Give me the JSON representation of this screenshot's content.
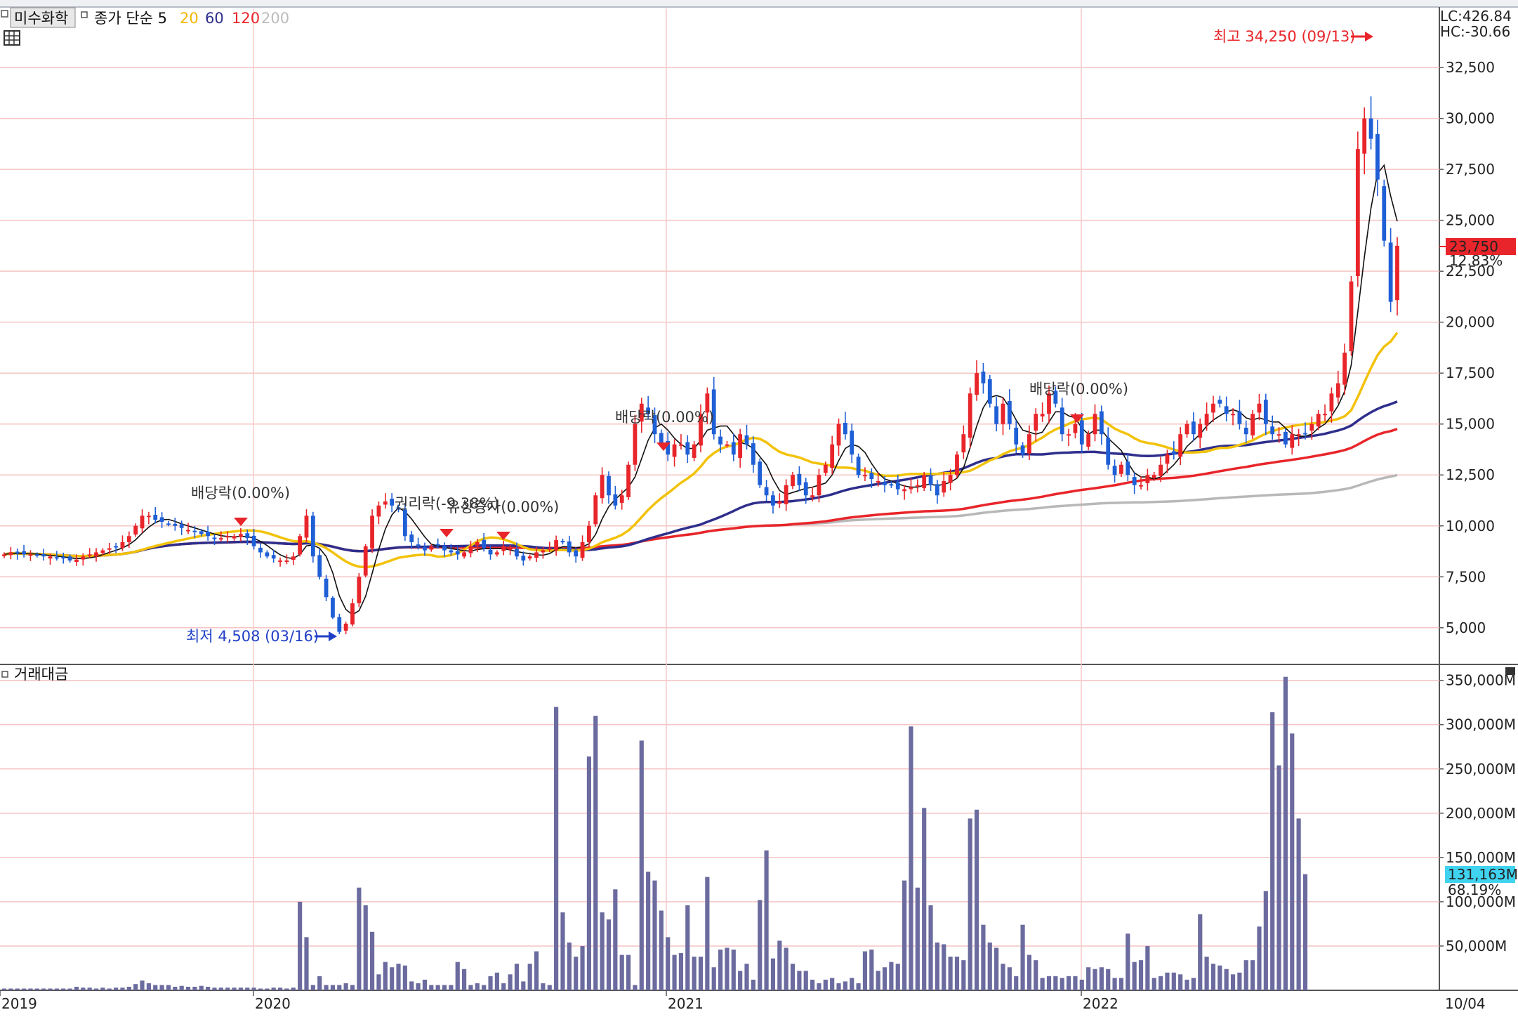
{
  "header": {
    "stock_name": "미수화학",
    "indicator_label": "종가 단순 5",
    "ma_periods": [
      "20",
      "60",
      "120",
      "200"
    ],
    "lc_label": "LC:426.84",
    "hc_label": "HC:-30.66"
  },
  "volume_panel": {
    "title": "거래대금"
  },
  "annotations": {
    "high": "최고 34,250 (09/13)",
    "low": "최저 4,508 (03/16)",
    "events": [
      "배당락(0.00%)",
      "권리락(-9.38%)",
      "유상증자(0.00%)",
      "배당락(0.00%)",
      "배당락(0.00%)"
    ]
  },
  "price_badge": {
    "price": "23,750",
    "change": "12.83%"
  },
  "volume_badge": {
    "value": "131,163M",
    "change": "68.19%"
  },
  "colors": {
    "up": "#e8252a",
    "down": "#1f5fd6",
    "ma5": "#111111",
    "ma20": "#f2c20a",
    "ma60": "#2e2e8c",
    "ma120": "#e8252a",
    "ma200": "#b8b8b8",
    "volume": "#6b6b9f",
    "grid": "#f6c4c4",
    "vgrid": "#f7c9c9"
  },
  "chart_data": [
    {
      "type": "candlestick",
      "title": "미수화학",
      "price_axis": {
        "ticks": [
          5000,
          7500,
          10000,
          12500,
          15000,
          17500,
          20000,
          22500,
          25000,
          27500,
          30000,
          32500
        ],
        "labels": [
          "5,000",
          "7,500",
          "10,000",
          "12,500",
          "15,000",
          "17,500",
          "20,000",
          "22,500",
          "25,000",
          "27,500",
          "30,000",
          "32,500"
        ],
        "ylim": [
          3200,
          35400
        ]
      },
      "time_axis": {
        "labels": [
          "2019",
          "2020",
          "2021",
          "2022",
          "10/04"
        ]
      },
      "grid": true,
      "high_point": {
        "value": 34250,
        "date": "09/13"
      },
      "low_point": {
        "value": 4508,
        "date": "03/16"
      },
      "last_close": 23750,
      "moving_averages": [
        {
          "name": "20",
          "period": 20
        },
        {
          "name": "60",
          "period": 60
        },
        {
          "name": "120",
          "period": 120
        },
        {
          "name": "200",
          "period": 200
        }
      ],
      "closes": [
        8600,
        8700,
        8650,
        8600,
        8600,
        8550,
        8500,
        8500,
        8450,
        8400,
        8300,
        8350,
        8500,
        8600,
        8700,
        8800,
        8900,
        9000,
        9200,
        9500,
        10000,
        10500,
        10500,
        10300,
        10200,
        10100,
        10000,
        9900,
        9800,
        9700,
        9600,
        9500,
        9400,
        9400,
        9500,
        9500,
        9600,
        9400,
        9000,
        8700,
        8500,
        8400,
        8300,
        8300,
        8500,
        9500,
        10500,
        8500,
        7500,
        6500,
        5500,
        4800,
        5200,
        6200,
        7500,
        9000,
        10500,
        11000,
        11200,
        11000,
        10800,
        9500,
        9200,
        9000,
        8800,
        9000,
        9100,
        8800,
        8700,
        8600,
        8700,
        9000,
        9200,
        8900,
        8600,
        8700,
        9000,
        8900,
        8500,
        8300,
        8500,
        8700,
        8800,
        8900,
        9300,
        9200,
        8700,
        8500,
        9200,
        10000,
        11500,
        12500,
        11500,
        11000,
        11500,
        13000,
        15000,
        16000,
        15500,
        14500,
        14000,
        13500,
        14000,
        14000,
        13500,
        14000,
        15500,
        16500,
        14500,
        14000,
        14000,
        13500,
        14500,
        14000,
        13000,
        12000,
        11500,
        11000,
        11200,
        12000,
        12500,
        12000,
        11500,
        11500,
        12500,
        13000,
        14000,
        15000,
        14500,
        13500,
        12500,
        12500,
        12300,
        12200,
        12000,
        12000,
        11800,
        11800,
        11900,
        12000,
        12500,
        12000,
        11500,
        12200,
        12500,
        13500,
        14500,
        16500,
        17500,
        17000,
        16000,
        15000,
        16000,
        15000,
        14000,
        13500,
        14500,
        15500,
        15500,
        16500,
        16000,
        14500,
        14500,
        15000,
        14000,
        14500,
        15500,
        14500,
        13000,
        12500,
        13000,
        12500,
        12000,
        12000,
        12500,
        12500,
        13000,
        13500,
        13500,
        14500,
        15000,
        14500,
        15000,
        15500,
        16000,
        16000,
        15500,
        15500,
        15000,
        14500,
        15500,
        16000,
        15000,
        14500,
        14500,
        14000,
        14500,
        14500,
        14500,
        15000,
        15500,
        15500,
        16500,
        17000,
        18500,
        22000,
        28500,
        30000,
        29000,
        27000,
        24000,
        21000,
        23750
      ]
    },
    {
      "type": "bar",
      "title": "거래대금",
      "value_axis": {
        "ticks": [
          50000,
          100000,
          150000,
          200000,
          250000,
          300000,
          350000
        ],
        "labels": [
          "50,000M",
          "100,000M",
          "150,000M",
          "200,000M",
          "250,000M",
          "300,000M",
          "350,000M"
        ],
        "ylim": [
          0,
          368000
        ]
      },
      "values": [
        2000,
        2000,
        2000,
        2000,
        2000,
        2000,
        2000,
        2000,
        2000,
        2000,
        2000,
        4000,
        3000,
        3000,
        2000,
        3000,
        2000,
        3000,
        3000,
        4000,
        7000,
        11000,
        8000,
        6000,
        6000,
        6000,
        4000,
        5000,
        4000,
        4000,
        5000,
        4000,
        3000,
        3000,
        3000,
        3000,
        3000,
        3000,
        3000,
        2000,
        2000,
        3000,
        3000,
        2000,
        3000,
        100000,
        60000,
        6000,
        16000,
        6000,
        6000,
        6000,
        8000,
        6000,
        116000,
        96000,
        66000,
        18000,
        32000,
        26000,
        30000,
        28000,
        10000,
        8000,
        12000,
        6000,
        6000,
        6000,
        6000,
        32000,
        24000,
        6000,
        8000,
        6000,
        16000,
        20000,
        8000,
        18000,
        30000,
        10000,
        30000,
        44000,
        8000,
        6000,
        320000,
        88000,
        54000,
        38000,
        50000,
        264000,
        310000,
        88000,
        80000,
        114000,
        40000,
        40000,
        6000,
        282000,
        134000,
        124000,
        90000,
        60000,
        40000,
        42000,
        96000,
        38000,
        38000,
        128000,
        26000,
        46000,
        48000,
        46000,
        22000,
        30000,
        12000,
        102000,
        158000,
        36000,
        56000,
        48000,
        30000,
        22000,
        22000,
        12000,
        8000,
        12000,
        14000,
        8000,
        10000,
        14000,
        8000,
        44000,
        46000,
        22000,
        26000,
        32000,
        30000,
        124000,
        298000,
        116000,
        206000,
        96000,
        54000,
        52000,
        38000,
        38000,
        34000,
        194000,
        204000,
        74000,
        54000,
        48000,
        30000,
        26000,
        16000,
        74000,
        40000,
        34000,
        14000,
        16000,
        16000,
        14000,
        16000,
        16000,
        12000,
        26000,
        24000,
        26000,
        24000,
        14000,
        14000,
        64000,
        32000,
        34000,
        50000,
        14000,
        16000,
        20000,
        20000,
        18000,
        12000,
        14000,
        86000,
        38000,
        30000,
        28000,
        24000,
        18000,
        20000,
        34000,
        34000,
        72000,
        112000,
        314000,
        254000,
        354000,
        290000,
        194000,
        131163
      ]
    }
  ]
}
